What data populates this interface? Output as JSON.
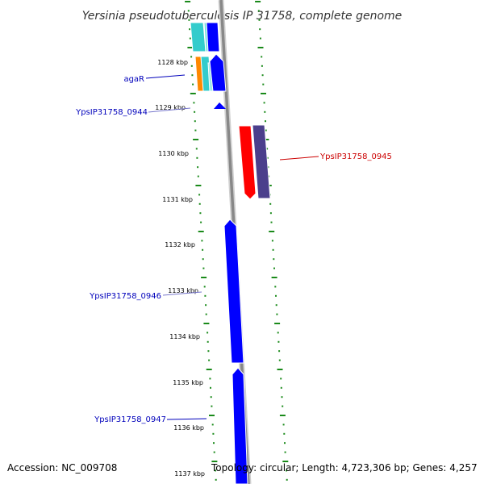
{
  "title": "Yersinia pseudotuberculosis IP 31758, complete genome",
  "footer": {
    "accession": "Accession: NC_009708",
    "topology": "Topology: circular; Length: 4,723,306 bp; Genes: 4,257"
  },
  "scale_labels": [
    "1128 kbp",
    "1129 kbp",
    "1130 kbp",
    "1131 kbp",
    "1132 kbp",
    "1133 kbp",
    "1134 kbp",
    "1135 kbp",
    "1136 kbp",
    "1137 kbp"
  ],
  "gene_labels": [
    {
      "text": "agaR",
      "color": "#0000bb"
    },
    {
      "text": "YpsIP31758_0944",
      "color": "#0000bb"
    },
    {
      "text": "YpsIP31758_0945",
      "color": "#cc0000"
    },
    {
      "text": "YpsIP31758_0946",
      "color": "#0000bb"
    },
    {
      "text": "YpsIP31758_0947",
      "color": "#0000bb"
    }
  ],
  "colors": {
    "backbone": "#888888",
    "tick": "#1a8a1a",
    "forward_gene": "#0000ff",
    "reverse_gene": "#ff0000",
    "cyan_gene": "#33cccc",
    "orange_gene": "#ff8800",
    "purple_gene": "#4b3f8c"
  }
}
